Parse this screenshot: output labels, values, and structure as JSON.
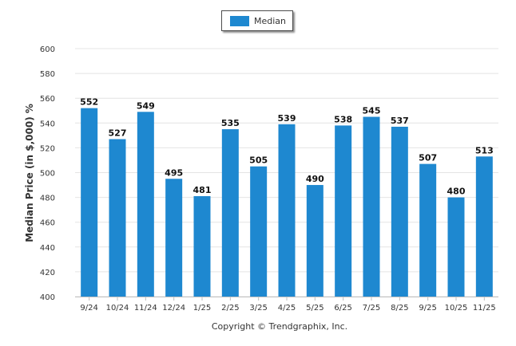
{
  "chart_data": {
    "type": "bar",
    "categories": [
      "9/24",
      "10/24",
      "11/24",
      "12/24",
      "1/25",
      "2/25",
      "3/25",
      "4/25",
      "5/25",
      "6/25",
      "7/25",
      "8/25",
      "9/25",
      "10/25",
      "11/25"
    ],
    "series": [
      {
        "name": "Median",
        "values": [
          552,
          527,
          549,
          495,
          481,
          535,
          505,
          539,
          490,
          538,
          545,
          537,
          507,
          480,
          513
        ],
        "color": "#1e88d0"
      }
    ],
    "ylabel": "Median Price (in $,000) %",
    "ylim": [
      400,
      600
    ],
    "yticks": [
      400,
      420,
      440,
      460,
      480,
      500,
      520,
      540,
      560,
      580,
      600
    ],
    "grid": true,
    "legend": "top-center",
    "data_labels": true
  },
  "footer": {
    "copyright": "Copyright © Trendgraphix, Inc."
  }
}
